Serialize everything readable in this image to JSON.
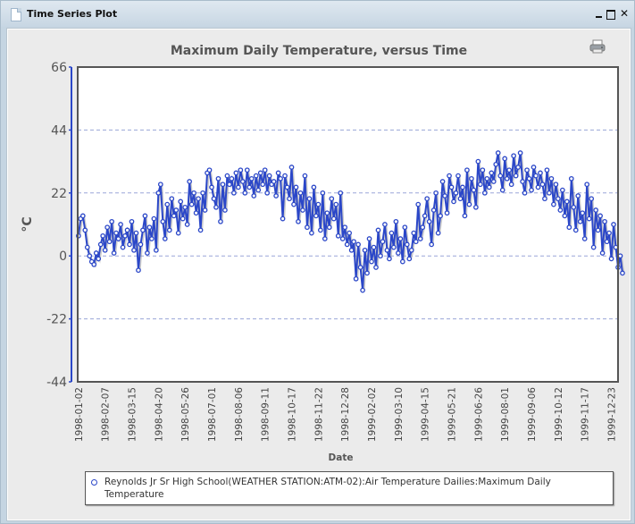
{
  "window": {
    "title": "Time Series Plot",
    "controls": {
      "minimize": "minimize",
      "maximize": "maximize",
      "close": "close"
    }
  },
  "chart": {
    "title": "Maximum Daily Temperature, versus Time",
    "print_icon": "printer-icon"
  },
  "legend": {
    "label": "Reynolds Jr Sr High School(WEATHER STATION:ATM-02):Air Temperature Dailies:Maximum Daily Temperature"
  },
  "colors": {
    "series": "#2b47c8",
    "axis": "#2b47c8",
    "grid": "#9aa6d8",
    "plot_border": "#555555"
  },
  "chart_data": {
    "type": "line",
    "title": "Maximum Daily Temperature, versus Time",
    "xlabel": "Date",
    "ylabel": "°C",
    "ylim": [
      -44,
      66
    ],
    "yticks": [
      66,
      44,
      22,
      0,
      -22,
      -44
    ],
    "grid": true,
    "legend_position": "bottom",
    "xticks": [
      "1998-01-02",
      "1998-02-07",
      "1998-03-15",
      "1998-04-20",
      "1998-05-26",
      "1998-07-01",
      "1998-08-06",
      "1998-09-11",
      "1998-10-17",
      "1998-11-22",
      "1998-12-28",
      "1999-02-02",
      "1999-03-10",
      "1999-04-15",
      "1999-05-21",
      "1999-06-26",
      "1999-08-01",
      "1999-09-06",
      "1999-10-12",
      "1999-11-17",
      "1999-12-23"
    ],
    "x_start": "1998-01-01",
    "x_step_days": 3,
    "series": [
      {
        "name": "Reynolds Jr Sr High School(WEATHER STATION:ATM-02):Air Temperature Dailies:Maximum Daily Temperature",
        "values": [
          7,
          13,
          14,
          9,
          3,
          0,
          -2,
          -3,
          1,
          -1,
          4,
          7,
          2,
          10,
          5,
          12,
          1,
          8,
          6,
          11,
          3,
          7,
          9,
          4,
          12,
          2,
          8,
          -5,
          4,
          9,
          14,
          1,
          10,
          6,
          13,
          2,
          22,
          25,
          12,
          6,
          18,
          9,
          20,
          14,
          16,
          8,
          19,
          13,
          17,
          11,
          26,
          18,
          22,
          15,
          20,
          9,
          22,
          16,
          29,
          30,
          24,
          20,
          17,
          27,
          12,
          25,
          16,
          28,
          25,
          27,
          22,
          29,
          24,
          30,
          26,
          22,
          30,
          24,
          27,
          21,
          28,
          23,
          29,
          25,
          30,
          22,
          28,
          25,
          26,
          21,
          29,
          27,
          13,
          28,
          24,
          20,
          31,
          18,
          24,
          12,
          22,
          16,
          28,
          10,
          20,
          8,
          24,
          14,
          18,
          9,
          22,
          6,
          15,
          10,
          20,
          13,
          18,
          7,
          22,
          6,
          10,
          4,
          8,
          2,
          5,
          -8,
          4,
          -4,
          -12,
          2,
          -6,
          6,
          -2,
          3,
          -4,
          9,
          0,
          5,
          11,
          2,
          -1,
          8,
          3,
          12,
          1,
          6,
          -2,
          10,
          4,
          -1,
          2,
          8,
          5,
          18,
          6,
          10,
          14,
          20,
          12,
          4,
          16,
          22,
          8,
          14,
          26,
          21,
          15,
          28,
          24,
          19,
          22,
          28,
          20,
          24,
          14,
          30,
          18,
          27,
          23,
          17,
          33,
          25,
          30,
          22,
          27,
          24,
          29,
          26,
          32,
          36,
          28,
          23,
          34,
          27,
          30,
          25,
          35,
          28,
          31,
          36,
          26,
          22,
          30,
          27,
          23,
          31,
          28,
          24,
          29,
          25,
          20,
          30,
          22,
          27,
          18,
          25,
          20,
          16,
          23,
          14,
          19,
          10,
          27,
          17,
          9,
          21,
          12,
          15,
          6,
          25,
          13,
          20,
          3,
          16,
          9,
          14,
          1,
          12,
          5,
          8,
          -1,
          11,
          3,
          -4,
          0,
          -6
        ]
      }
    ]
  },
  "axes": {
    "y_unit": "°C",
    "x_label": "Date"
  }
}
